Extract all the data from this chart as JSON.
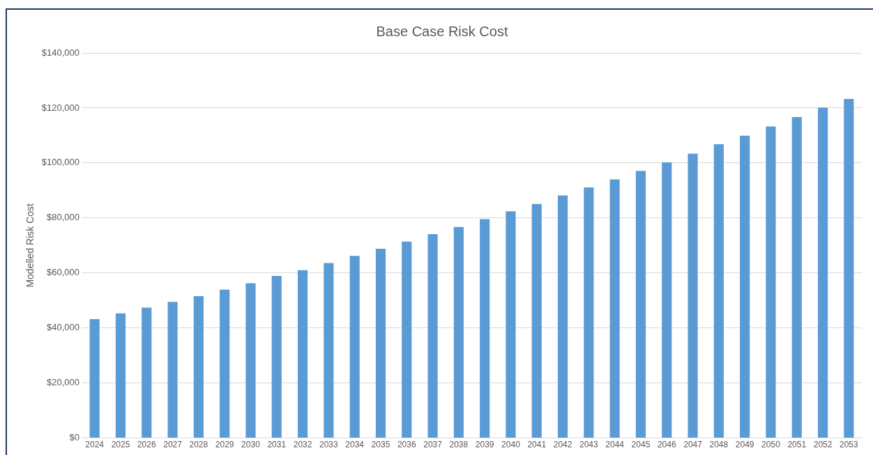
{
  "chart_data": {
    "type": "bar",
    "title": "Base Case Risk Cost",
    "ylabel": "Modelled Risk Cost",
    "categories": [
      "2024",
      "2025",
      "2026",
      "2027",
      "2028",
      "2029",
      "2030",
      "2031",
      "2032",
      "2033",
      "2034",
      "2035",
      "2036",
      "2037",
      "2038",
      "2039",
      "2040",
      "2041",
      "2042",
      "2043",
      "2044",
      "2045",
      "2046",
      "2047",
      "2048",
      "2049",
      "2050",
      "2051",
      "2052",
      "2053"
    ],
    "values": [
      43200,
      45300,
      47400,
      49500,
      51600,
      53900,
      56300,
      58900,
      61000,
      63600,
      66200,
      68800,
      71400,
      74100,
      76700,
      79600,
      82400,
      85100,
      88200,
      91100,
      94000,
      97100,
      100200,
      103400,
      106800,
      109900,
      113300,
      116700,
      120100,
      123300
    ],
    "color": "#5b9bd5",
    "ylim": [
      0,
      140000
    ],
    "yticks": [
      {
        "value": 0,
        "label": "$0"
      },
      {
        "value": 20000,
        "label": "$20,000"
      },
      {
        "value": 40000,
        "label": "$40,000"
      },
      {
        "value": 60000,
        "label": "$60,000"
      },
      {
        "value": 80000,
        "label": "$80,000"
      },
      {
        "value": 100000,
        "label": "$100,000"
      },
      {
        "value": 120000,
        "label": "$120,000"
      },
      {
        "value": 140000,
        "label": "$140,000"
      }
    ],
    "grid": "y",
    "legend": false
  }
}
